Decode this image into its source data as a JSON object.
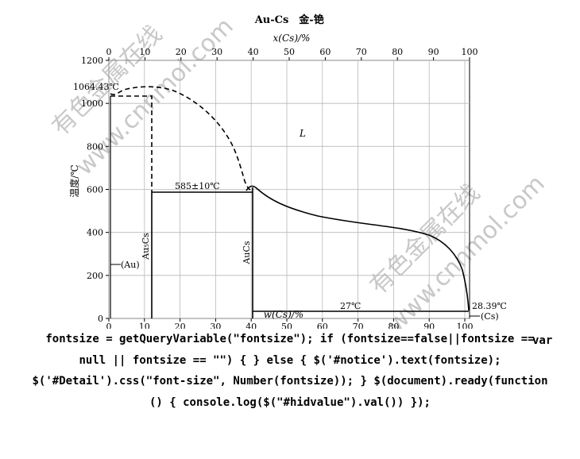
{
  "diagram": {
    "title": "Au-Cs",
    "title_cn": "金-铯",
    "top_axis_label": "x(Cs)/%",
    "top_ticks": [
      "0",
      "10",
      "20",
      "30",
      "40",
      "50",
      "60",
      "70",
      "80",
      "90",
      "100"
    ],
    "bottom_axis_label": "w(Cs)/%",
    "bottom_ticks": [
      "0",
      "10",
      "20",
      "30",
      "40",
      "50",
      "60",
      "70",
      "80",
      "90",
      "100"
    ],
    "y_axis_label": "温度/℃",
    "y_ticks": [
      "0",
      "200",
      "400",
      "600",
      "800",
      "1000",
      "1200"
    ],
    "left_element": "Au",
    "right_element": "Cs",
    "annotations": {
      "au_melting": "1064.43℃",
      "eutectic_high": "585±10℃",
      "eutectic_low": "27℃",
      "cs_melting": "28.39℃",
      "liquid": "L",
      "au_phase": "(Au)",
      "cs_phase": "(Cs)",
      "compound_au5cs": "Au₅Cs",
      "compound_aucs": "AuCs"
    },
    "watermark": [
      "有色金属在线",
      "www.cnnmol.com"
    ]
  },
  "code_text": {
    "line0": "var",
    "line1": "fontsize = getQueryVariable(\"fontsize\"); if (fontsize==false||fontsize ==",
    "line2": "null || fontsize == \"\") { } else { $('#notice').text(fontsize);",
    "line3": "$('#Detail').css(\"font-size\", Number(fontsize)); } $(document).ready(function",
    "line4": "() { console.log($(\"#hidvalue\").val()) });"
  }
}
